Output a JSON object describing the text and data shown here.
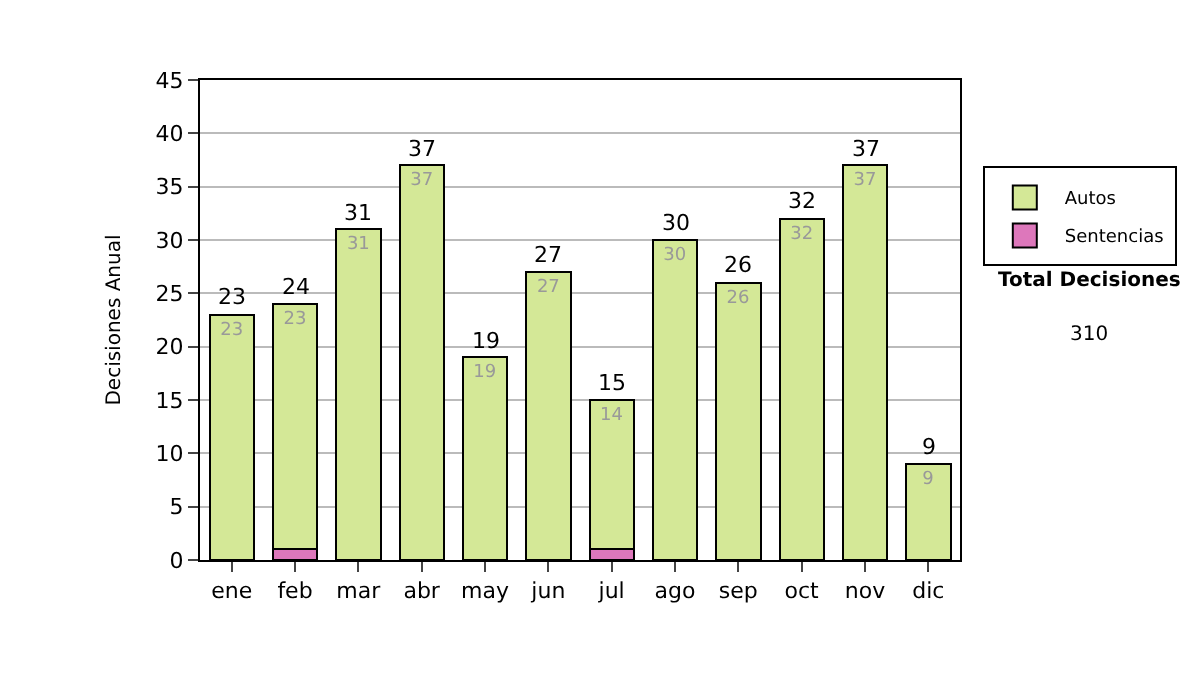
{
  "chart_data": {
    "type": "bar",
    "stacked": true,
    "ylabel": "Decisiones Anual",
    "categories": [
      "ene",
      "feb",
      "mar",
      "abr",
      "may",
      "jun",
      "jul",
      "ago",
      "sep",
      "oct",
      "nov",
      "dic"
    ],
    "series": [
      {
        "name": "Sentencias",
        "color": "#dd77bb",
        "values": [
          0,
          1,
          0,
          0,
          0,
          0,
          1,
          0,
          0,
          0,
          0,
          0
        ]
      },
      {
        "name": "Autos",
        "color": "#d4e897",
        "values": [
          23,
          23,
          31,
          37,
          19,
          27,
          14,
          30,
          26,
          32,
          37,
          9
        ],
        "value_labels": [
          "23",
          "23",
          "31",
          "37",
          "19",
          "27",
          "14",
          "30",
          "26",
          "32",
          "37",
          "9"
        ]
      }
    ],
    "totals": [
      "23",
      "24",
      "31",
      "37",
      "19",
      "27",
      "15",
      "30",
      "26",
      "32",
      "37",
      "9"
    ],
    "ylim": [
      0,
      45
    ],
    "yticks": [
      0,
      5,
      10,
      15,
      20,
      25,
      30,
      35,
      40,
      45
    ],
    "grid": "y",
    "legend": "right",
    "annotations": [
      "Total Decisiones",
      "310"
    ]
  }
}
